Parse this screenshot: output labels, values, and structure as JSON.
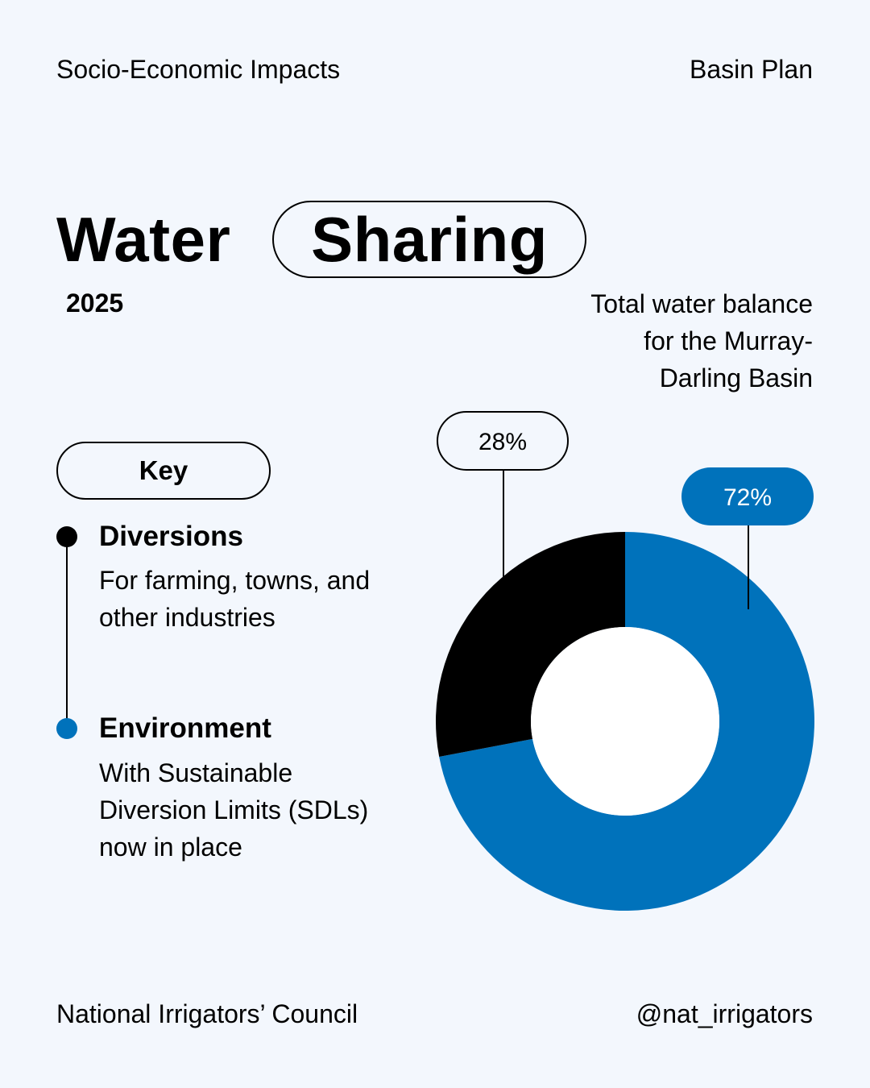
{
  "header": {
    "left": "Socio-Economic Impacts",
    "right": "Basin Plan"
  },
  "title": {
    "word1": "Water",
    "word2": "Sharing",
    "year": "2025"
  },
  "key": {
    "label": "Key",
    "items": [
      {
        "heading": "Diversions",
        "description": "For farming, towns, and other industries"
      },
      {
        "heading": "Environment",
        "description": "With Sustainable Diversion Limits (SDLs) now in place"
      }
    ]
  },
  "footer": {
    "left": "National Irrigators’ Council",
    "right": "@nat_irrigators"
  },
  "colors": {
    "background": "#f3f7fd",
    "diversions": "#000000",
    "environment": "#0072bb"
  },
  "chart_data": {
    "type": "pie",
    "variant": "donut",
    "title": "Total water balance for the Murray-Darling Basin",
    "categories": [
      "Environment",
      "Diversions"
    ],
    "values": [
      72,
      28
    ],
    "labels": [
      "72%",
      "28%"
    ],
    "colors": [
      "#0072bb",
      "#000000"
    ]
  }
}
